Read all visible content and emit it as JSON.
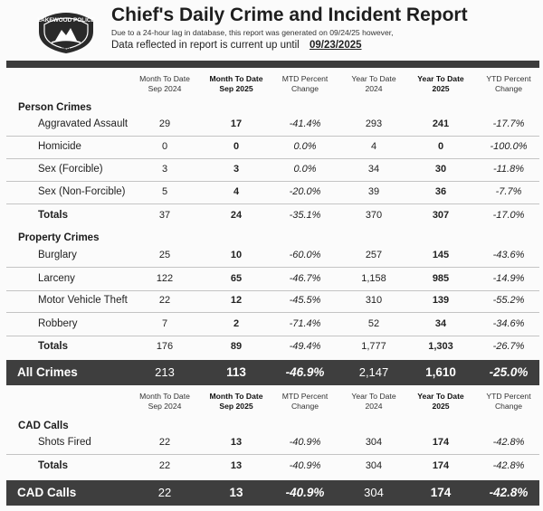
{
  "header": {
    "logo_text_top": "LAKEWOOD POLICE",
    "logo_text_bottom": "WA",
    "title": "Chief's Daily Crime and Incident Report",
    "lag_note": "Due to a 24-hour lag in database, this report was generated on  09/24/25 however,",
    "current_label": "Data reflected in report is current up until",
    "current_date": "09/23/2025"
  },
  "columns": {
    "mtd_prev": [
      "Month To Date",
      "Sep 2024"
    ],
    "mtd_curr": [
      "Month To Date",
      "Sep 2025"
    ],
    "mtd_pct": [
      "MTD Percent",
      "Change"
    ],
    "ytd_prev": [
      "Year To Date",
      "2024"
    ],
    "ytd_curr": [
      "Year To Date",
      "2025"
    ],
    "ytd_pct": [
      "YTD Percent",
      "Change"
    ]
  },
  "person_crimes": {
    "heading": "Person Crimes",
    "rows": [
      {
        "label": "Aggravated Assault",
        "v": [
          "29",
          "17",
          "-41.4%",
          "293",
          "241",
          "-17.7%"
        ]
      },
      {
        "label": "Homicide",
        "v": [
          "0",
          "0",
          "0.0%",
          "4",
          "0",
          "-100.0%"
        ]
      },
      {
        "label": "Sex (Forcible)",
        "v": [
          "3",
          "3",
          "0.0%",
          "34",
          "30",
          "-11.8%"
        ]
      },
      {
        "label": "Sex (Non-Forcible)",
        "v": [
          "5",
          "4",
          "-20.0%",
          "39",
          "36",
          "-7.7%"
        ]
      }
    ],
    "totals": {
      "label": "Totals",
      "v": [
        "37",
        "24",
        "-35.1%",
        "370",
        "307",
        "-17.0%"
      ]
    }
  },
  "property_crimes": {
    "heading": "Property Crimes",
    "rows": [
      {
        "label": "Burglary",
        "v": [
          "25",
          "10",
          "-60.0%",
          "257",
          "145",
          "-43.6%"
        ]
      },
      {
        "label": "Larceny",
        "v": [
          "122",
          "65",
          "-46.7%",
          "1,158",
          "985",
          "-14.9%"
        ]
      },
      {
        "label": "Motor Vehicle Theft",
        "v": [
          "22",
          "12",
          "-45.5%",
          "310",
          "139",
          "-55.2%"
        ]
      },
      {
        "label": "Robbery",
        "v": [
          "7",
          "2",
          "-71.4%",
          "52",
          "34",
          "-34.6%"
        ]
      }
    ],
    "totals": {
      "label": "Totals",
      "v": [
        "176",
        "89",
        "-49.4%",
        "1,777",
        "1,303",
        "-26.7%"
      ]
    }
  },
  "all_crimes": {
    "label": "All Crimes",
    "v": [
      "213",
      "113",
      "-46.9%",
      "2,147",
      "1,610",
      "-25.0%"
    ]
  },
  "cad_calls": {
    "heading": "CAD Calls",
    "rows": [
      {
        "label": "Shots Fired",
        "v": [
          "22",
          "13",
          "-40.9%",
          "304",
          "174",
          "-42.8%"
        ]
      }
    ],
    "totals": {
      "label": "Totals",
      "v": [
        "22",
        "13",
        "-40.9%",
        "304",
        "174",
        "-42.8%"
      ]
    }
  },
  "cad_calls_total": {
    "label": "CAD Calls",
    "v": [
      "22",
      "13",
      "-40.9%",
      "304",
      "174",
      "-42.8%"
    ]
  }
}
